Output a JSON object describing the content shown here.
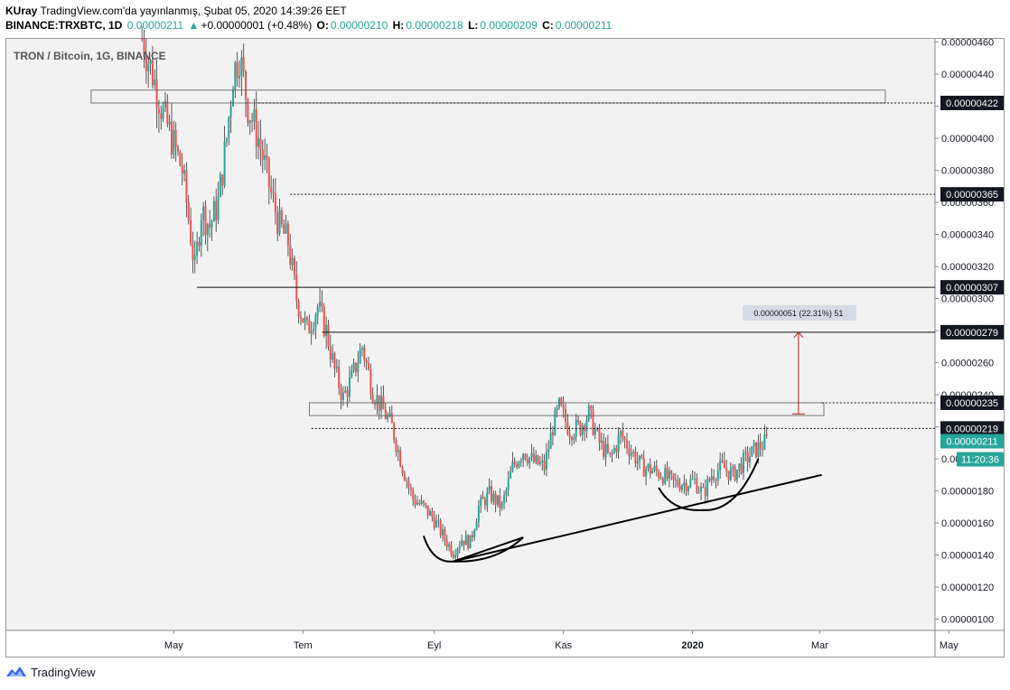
{
  "header": {
    "user": "KUray",
    "published": "TradingView.com'da yayınlanmış, Şubat 05, 2020 14:39:26 EET",
    "symbol": "BINANCE:TRXBTC, 1D",
    "open_value": "0.00000211",
    "change": "+0.00000001 (+0.48%)",
    "o_label": "O:",
    "o_value": "0.00000210",
    "h_label": "H:",
    "h_value": "0.00000218",
    "l_label": "L:",
    "l_value": "0.00000209",
    "c_label": "C:",
    "c_value": "0.00000211"
  },
  "footer": {
    "brand": "TradingView"
  },
  "colors": {
    "up": "#26a69a",
    "down": "#ef5350",
    "background": "#f2f2f2",
    "label_dark": "#131722",
    "measure": "#b71c1c"
  },
  "chart_data": {
    "type": "candlestick",
    "title": "TRON / Bitcoin, 1G, BINANCE",
    "xlabel": "",
    "ylabel": "",
    "x_ticks": [
      "May",
      "Tem",
      "Eyl",
      "Kas",
      "2020",
      "Mar",
      "May"
    ],
    "y_ticks": [
      "0.00000100",
      "0.00000120",
      "0.00000140",
      "0.00000160",
      "0.00000180",
      "0.00000200",
      "0.00000220",
      "0.00000240",
      "0.00000260",
      "0.00000280",
      "0.00000300",
      "0.00000320",
      "0.00000340",
      "0.00000360",
      "0.00000380",
      "0.00000400",
      "0.00000420",
      "0.00000440",
      "0.00000460"
    ],
    "ylim": [
      9.3e-07,
      4.62e-06
    ],
    "price_path": [
      [
        "2019-04-16",
        4.62e-06
      ],
      [
        "2019-04-21",
        4.4e-06
      ],
      [
        "2019-04-26",
        4.15e-06
      ],
      [
        "2019-04-30",
        4e-06
      ],
      [
        "2019-05-05",
        3.8e-06
      ],
      [
        "2019-05-08",
        3.5e-06
      ],
      [
        "2019-05-11",
        3.18e-06
      ],
      [
        "2019-05-14",
        3.55e-06
      ],
      [
        "2019-05-18",
        3.45e-06
      ],
      [
        "2019-05-22",
        3.6e-06
      ],
      [
        "2019-05-26",
        4e-06
      ],
      [
        "2019-05-29",
        4.4e-06
      ],
      [
        "2019-06-01",
        4.52e-06
      ],
      [
        "2019-06-05",
        4.2e-06
      ],
      [
        "2019-06-10",
        4e-06
      ],
      [
        "2019-06-16",
        3.65e-06
      ],
      [
        "2019-06-20",
        3.45e-06
      ],
      [
        "2019-06-24",
        3.35e-06
      ],
      [
        "2019-06-28",
        3e-06
      ],
      [
        "2019-07-03",
        2.8e-06
      ],
      [
        "2019-07-08",
        2.95e-06
      ],
      [
        "2019-07-12",
        2.8e-06
      ],
      [
        "2019-07-16",
        2.55e-06
      ],
      [
        "2019-07-20",
        2.38e-06
      ],
      [
        "2019-07-24",
        2.5e-06
      ],
      [
        "2019-07-29",
        2.7e-06
      ],
      [
        "2019-08-03",
        2.42e-06
      ],
      [
        "2019-08-08",
        2.3e-06
      ],
      [
        "2019-08-12",
        2.2e-06
      ],
      [
        "2019-08-17",
        1.95e-06
      ],
      [
        "2019-08-22",
        1.75e-06
      ],
      [
        "2019-08-27",
        1.7e-06
      ],
      [
        "2019-09-01",
        1.62e-06
      ],
      [
        "2019-09-06",
        1.5e-06
      ],
      [
        "2019-09-10",
        1.42e-06
      ],
      [
        "2019-09-14",
        1.5e-06
      ],
      [
        "2019-09-18",
        1.48e-06
      ],
      [
        "2019-09-22",
        1.7e-06
      ],
      [
        "2019-09-27",
        1.78e-06
      ],
      [
        "2019-10-03",
        1.7e-06
      ],
      [
        "2019-10-08",
        1.95e-06
      ],
      [
        "2019-10-13",
        2.05e-06
      ],
      [
        "2019-10-18",
        1.98e-06
      ],
      [
        "2019-10-23",
        1.95e-06
      ],
      [
        "2019-10-27",
        2.2e-06
      ],
      [
        "2019-10-30",
        2.32e-06
      ],
      [
        "2019-11-04",
        2.18e-06
      ],
      [
        "2019-11-09",
        2.2e-06
      ],
      [
        "2019-11-13",
        2.28e-06
      ],
      [
        "2019-11-18",
        2.1e-06
      ],
      [
        "2019-11-23",
        2e-06
      ],
      [
        "2019-11-28",
        2.15e-06
      ],
      [
        "2019-12-03",
        2.05e-06
      ],
      [
        "2019-12-08",
        1.95e-06
      ],
      [
        "2019-12-13",
        1.93e-06
      ],
      [
        "2019-12-18",
        1.9e-06
      ],
      [
        "2019-12-23",
        1.85e-06
      ],
      [
        "2019-12-28",
        1.85e-06
      ],
      [
        "2020-01-02",
        1.86e-06
      ],
      [
        "2020-01-06",
        1.78e-06
      ],
      [
        "2020-01-10",
        1.9e-06
      ],
      [
        "2020-01-15",
        1.95e-06
      ],
      [
        "2020-01-20",
        1.9e-06
      ],
      [
        "2020-01-25",
        1.98e-06
      ],
      [
        "2020-01-30",
        2.05e-06
      ],
      [
        "2020-02-05",
        2.11e-06
      ]
    ],
    "horizontal_levels": [
      {
        "label": "0.00000422",
        "price": 4.22e-06,
        "style": "dotted",
        "from": "2019-06-10"
      },
      {
        "label": "0.00000365",
        "price": 3.65e-06,
        "style": "dotted",
        "from": "2019-06-25"
      },
      {
        "label": "0.00000307",
        "price": 3.07e-06,
        "style": "solid",
        "from": "2019-05-12"
      },
      {
        "label": "0.00000279",
        "price": 2.79e-06,
        "style": "solid",
        "from": "2019-07-10"
      },
      {
        "label": "0.00000235",
        "price": 2.35e-06,
        "style": "dotted",
        "from": "2020-03-02"
      },
      {
        "label": "0.00000219",
        "price": 2.19e-06,
        "style": "dotted",
        "from": "2019-07-05"
      }
    ],
    "rectangles": [
      {
        "from": "2019-03-23",
        "to": "2020-04-01",
        "top": 4.3e-06,
        "bottom": 4.22e-06
      },
      {
        "from": "2019-07-04",
        "to": "2020-03-03",
        "top": 2.35e-06,
        "bottom": 2.27e-06
      }
    ],
    "measure": {
      "label": "0.00000051 (22.31%) 51",
      "date": "2020-02-20",
      "from_price": 2.28e-06,
      "to_price": 2.79e-06
    },
    "trendlines": [
      {
        "from": [
          "2019-09-10",
          1.36e-06
        ],
        "to": [
          "2020-03-02",
          1.9e-06
        ]
      },
      {
        "from": [
          "2019-09-10",
          1.36e-06
        ],
        "to": [
          "2019-10-13",
          1.51e-06
        ]
      }
    ],
    "arcs": [
      {
        "from": [
          "2019-08-27",
          1.52e-06
        ],
        "bottom": [
          "2019-09-10",
          1.36e-06
        ],
        "to": [
          "2019-10-13",
          1.51e-06
        ]
      },
      {
        "from": [
          "2019-12-16",
          1.82e-06
        ],
        "bottom": [
          "2020-01-06",
          1.68e-06
        ],
        "to": [
          "2020-02-01",
          2e-06
        ]
      }
    ],
    "price_labels": [
      {
        "text": "0.00000422",
        "style": "dark"
      },
      {
        "text": "0.00000365",
        "style": "dark"
      },
      {
        "text": "0.00000307",
        "style": "dark"
      },
      {
        "text": "0.00000279",
        "style": "dark"
      },
      {
        "text": "0.00000235",
        "style": "dark"
      },
      {
        "text": "0.00000219",
        "style": "dark"
      },
      {
        "text": "0.00000211",
        "style": "teal"
      },
      {
        "text": "11:20:36",
        "style": "teal"
      }
    ]
  }
}
